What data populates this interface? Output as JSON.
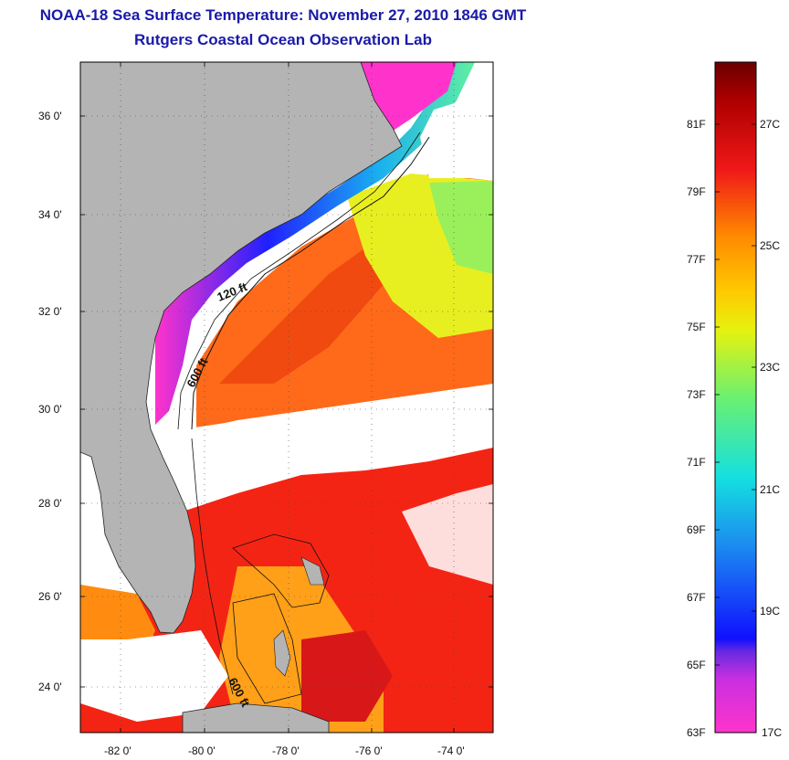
{
  "header": {
    "title": "NOAA-18 Sea Surface Temperature:  November 27, 2010 1846 GMT",
    "subtitle": "Rutgers Coastal Ocean Observation Lab"
  },
  "map": {
    "lat_ticks": [
      "36 0'",
      "34 0'",
      "32 0'",
      "30 0'",
      "28 0'",
      "26 0'",
      "24 0'"
    ],
    "lon_ticks": [
      "-82 0'",
      "-80 0'",
      "-78 0'",
      "-76 0'",
      "-74 0'"
    ],
    "contour_labels": [
      "120 ft",
      "600 ft",
      "600 ft"
    ],
    "land_color": "#b4b4b4",
    "cloud_color": "#ffffff"
  },
  "colorbar": {
    "f_labels": [
      "81F",
      "79F",
      "77F",
      "75F",
      "73F",
      "71F",
      "69F",
      "67F",
      "65F",
      "63F"
    ],
    "c_labels": [
      "27C",
      "25C",
      "23C",
      "21C",
      "19C",
      "17C"
    ],
    "colors": [
      "#ff33cc",
      "#7b2be0",
      "#1a1aff",
      "#1c9bf0",
      "#17d9d9",
      "#5ff07a",
      "#c8f51e",
      "#f5f000",
      "#ffb800",
      "#ff6a00",
      "#f01010",
      "#7a0000"
    ]
  }
}
